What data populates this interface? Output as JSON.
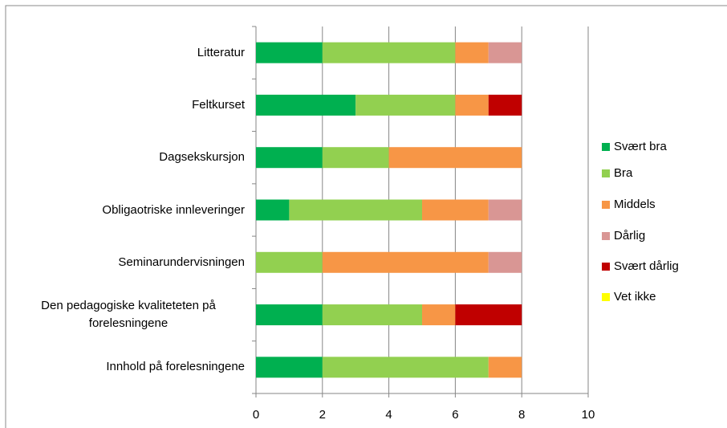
{
  "chart_data": {
    "type": "stacked_barh",
    "categories": [
      "Litteratur",
      "Feltkurset",
      "Dagsekskursjon",
      "Obligaotriske innleveringer",
      "Seminarundervisningen",
      "Den pedagogiske kvaliteteten på forelesningene",
      "Innhold på forelesningene"
    ],
    "series": [
      {
        "name": "Svært bra",
        "color": "#00b050",
        "values": [
          2,
          3,
          2,
          1,
          0,
          2,
          2
        ]
      },
      {
        "name": "Bra",
        "color": "#92d050",
        "values": [
          4,
          3,
          2,
          4,
          2,
          3,
          5
        ]
      },
      {
        "name": "Middels",
        "color": "#f79646",
        "values": [
          1,
          1,
          4,
          2,
          5,
          1,
          1
        ]
      },
      {
        "name": "Dårlig",
        "color": "#d99694",
        "values": [
          1,
          0,
          0,
          1,
          1,
          0,
          0
        ]
      },
      {
        "name": "Svært dårlig",
        "color": "#c00000",
        "values": [
          0,
          1,
          0,
          0,
          0,
          2,
          0
        ]
      },
      {
        "name": "Vet ikke",
        "color": "#ffff00",
        "values": [
          0,
          0,
          0,
          0,
          0,
          0,
          0
        ]
      }
    ],
    "xlim": [
      0,
      10
    ],
    "xticks": [
      0,
      2,
      4,
      6,
      8,
      10
    ],
    "grid": true,
    "legend": "right"
  }
}
